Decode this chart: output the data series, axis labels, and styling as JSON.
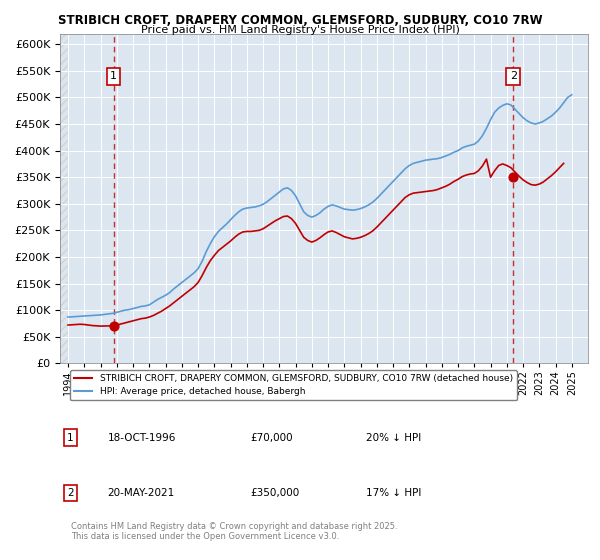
{
  "title1": "STRIBICH CROFT, DRAPERY COMMON, GLEMSFORD, SUDBURY, CO10 7RW",
  "title2": "Price paid vs. HM Land Registry's House Price Index (HPI)",
  "background_color": "#dce6f0",
  "plot_bg": "#dce6f0",
  "hpi_color": "#5b9bd5",
  "price_color": "#c00000",
  "marker_color": "#c00000",
  "annotation1": {
    "label": "1",
    "date_x": 1996.8,
    "y": 70000
  },
  "annotation2": {
    "label": "2",
    "date_x": 2021.4,
    "y": 350000
  },
  "legend_red": "STRIBICH CROFT, DRAPERY COMMON, GLEMSFORD, SUDBURY, CO10 7RW (detached house)",
  "legend_blue": "HPI: Average price, detached house, Babergh",
  "table": [
    {
      "num": "1",
      "date": "18-OCT-1996",
      "price": "£70,000",
      "hpi": "20% ↓ HPI"
    },
    {
      "num": "2",
      "date": "20-MAY-2021",
      "price": "£350,000",
      "hpi": "17% ↓ HPI"
    }
  ],
  "footnote": "Contains HM Land Registry data © Crown copyright and database right 2025.\nThis data is licensed under the Open Government Licence v3.0.",
  "ylim": [
    0,
    620000
  ],
  "yticks": [
    0,
    50000,
    100000,
    150000,
    200000,
    250000,
    300000,
    350000,
    400000,
    450000,
    500000,
    550000,
    600000
  ],
  "xlim_start": 1993.5,
  "xlim_end": 2026.0,
  "hpi_years": [
    1994,
    1994.25,
    1994.5,
    1994.75,
    1995,
    1995.25,
    1995.5,
    1995.75,
    1996,
    1996.25,
    1996.5,
    1996.75,
    1997,
    1997.25,
    1997.5,
    1997.75,
    1998,
    1998.25,
    1998.5,
    1998.75,
    1999,
    1999.25,
    1999.5,
    1999.75,
    2000,
    2000.25,
    2000.5,
    2000.75,
    2001,
    2001.25,
    2001.5,
    2001.75,
    2002,
    2002.25,
    2002.5,
    2002.75,
    2003,
    2003.25,
    2003.5,
    2003.75,
    2004,
    2004.25,
    2004.5,
    2004.75,
    2005,
    2005.25,
    2005.5,
    2005.75,
    2006,
    2006.25,
    2006.5,
    2006.75,
    2007,
    2007.25,
    2007.5,
    2007.75,
    2008,
    2008.25,
    2008.5,
    2008.75,
    2009,
    2009.25,
    2009.5,
    2009.75,
    2010,
    2010.25,
    2010.5,
    2010.75,
    2011,
    2011.25,
    2011.5,
    2011.75,
    2012,
    2012.25,
    2012.5,
    2012.75,
    2013,
    2013.25,
    2013.5,
    2013.75,
    2014,
    2014.25,
    2014.5,
    2014.75,
    2015,
    2015.25,
    2015.5,
    2015.75,
    2016,
    2016.25,
    2016.5,
    2016.75,
    2017,
    2017.25,
    2017.5,
    2017.75,
    2018,
    2018.25,
    2018.5,
    2018.75,
    2019,
    2019.25,
    2019.5,
    2019.75,
    2020,
    2020.25,
    2020.5,
    2020.75,
    2021,
    2021.25,
    2021.5,
    2021.75,
    2022,
    2022.25,
    2022.5,
    2022.75,
    2023,
    2023.25,
    2023.5,
    2023.75,
    2024,
    2024.25,
    2024.5,
    2024.75,
    2025
  ],
  "hpi_values": [
    87000,
    87500,
    88000,
    88500,
    89000,
    89500,
    90000,
    90500,
    91000,
    92000,
    93000,
    94000,
    96000,
    98000,
    100000,
    101000,
    103000,
    105000,
    107000,
    108000,
    110000,
    115000,
    120000,
    124000,
    128000,
    133000,
    140000,
    146000,
    152000,
    158000,
    164000,
    170000,
    178000,
    192000,
    210000,
    225000,
    238000,
    248000,
    255000,
    262000,
    270000,
    278000,
    285000,
    290000,
    292000,
    293000,
    294000,
    296000,
    299000,
    304000,
    310000,
    316000,
    322000,
    328000,
    330000,
    325000,
    315000,
    300000,
    285000,
    278000,
    275000,
    278000,
    283000,
    290000,
    295000,
    298000,
    296000,
    293000,
    290000,
    289000,
    288000,
    289000,
    291000,
    294000,
    298000,
    303000,
    310000,
    318000,
    326000,
    334000,
    342000,
    350000,
    358000,
    366000,
    372000,
    376000,
    378000,
    380000,
    382000,
    383000,
    384000,
    385000,
    387000,
    390000,
    393000,
    397000,
    400000,
    405000,
    408000,
    410000,
    412000,
    418000,
    428000,
    442000,
    458000,
    472000,
    480000,
    485000,
    488000,
    486000,
    478000,
    470000,
    462000,
    456000,
    452000,
    450000,
    452000,
    455000,
    460000,
    465000,
    472000,
    480000,
    490000,
    500000,
    505000
  ],
  "price_years": [
    1994.0,
    1994.25,
    1994.5,
    1994.75,
    1995,
    1995.25,
    1995.5,
    1995.75,
    1996,
    1996.25,
    1996.5,
    1996.75,
    1997,
    1997.25,
    1997.5,
    1997.75,
    1998,
    1998.25,
    1998.5,
    1998.75,
    1999,
    1999.25,
    1999.5,
    1999.75,
    2000,
    2000.25,
    2000.5,
    2000.75,
    2001,
    2001.25,
    2001.5,
    2001.75,
    2002,
    2002.25,
    2002.5,
    2002.75,
    2003,
    2003.25,
    2003.5,
    2003.75,
    2004,
    2004.25,
    2004.5,
    2004.75,
    2005,
    2005.25,
    2005.5,
    2005.75,
    2006,
    2006.25,
    2006.5,
    2006.75,
    2007,
    2007.25,
    2007.5,
    2007.75,
    2008,
    2008.25,
    2008.5,
    2008.75,
    2009,
    2009.25,
    2009.5,
    2009.75,
    2010,
    2010.25,
    2010.5,
    2010.75,
    2011,
    2011.25,
    2011.5,
    2011.75,
    2012,
    2012.25,
    2012.5,
    2012.75,
    2013,
    2013.25,
    2013.5,
    2013.75,
    2014,
    2014.25,
    2014.5,
    2014.75,
    2015,
    2015.25,
    2015.5,
    2015.75,
    2016,
    2016.25,
    2016.5,
    2016.75,
    2017,
    2017.25,
    2017.5,
    2017.75,
    2018,
    2018.25,
    2018.5,
    2018.75,
    2019,
    2019.25,
    2019.5,
    2019.75,
    2020,
    2020.25,
    2020.5,
    2020.75,
    2021,
    2021.25,
    2021.5,
    2021.75,
    2022,
    2022.25,
    2022.5,
    2022.75,
    2023,
    2023.25,
    2023.5,
    2023.75,
    2024,
    2024.25,
    2024.5
  ],
  "price_values": [
    72000,
    72500,
    73000,
    73500,
    73000,
    72000,
    71000,
    70500,
    70000,
    70200,
    70400,
    70000,
    72000,
    74000,
    76000,
    78000,
    80000,
    82000,
    84000,
    85000,
    87000,
    90000,
    94000,
    98000,
    103000,
    108000,
    114000,
    120000,
    126000,
    132000,
    138000,
    144000,
    152000,
    165000,
    180000,
    193000,
    203000,
    212000,
    218000,
    224000,
    230000,
    237000,
    243000,
    247000,
    248000,
    248000,
    249000,
    250000,
    253000,
    258000,
    263000,
    268000,
    272000,
    276000,
    277000,
    272000,
    263000,
    250000,
    237000,
    231000,
    228000,
    231000,
    236000,
    242000,
    247000,
    249000,
    246000,
    242000,
    238000,
    236000,
    234000,
    235000,
    237000,
    240000,
    244000,
    249000,
    256000,
    264000,
    272000,
    280000,
    288000,
    296000,
    304000,
    312000,
    317000,
    320000,
    321000,
    322000,
    323000,
    324000,
    325000,
    327000,
    330000,
    333000,
    337000,
    342000,
    346000,
    351000,
    354000,
    356000,
    357000,
    362000,
    371000,
    384000,
    350000,
    362000,
    372000,
    375000,
    372000,
    368000,
    360000,
    352000,
    345000,
    340000,
    336000,
    335000,
    337000,
    341000,
    347000,
    353000,
    360000,
    368000,
    376000
  ],
  "xticks": [
    1994,
    1995,
    1996,
    1997,
    1998,
    1999,
    2000,
    2001,
    2002,
    2003,
    2004,
    2005,
    2006,
    2007,
    2008,
    2009,
    2010,
    2011,
    2012,
    2013,
    2014,
    2015,
    2016,
    2017,
    2018,
    2019,
    2020,
    2021,
    2022,
    2023,
    2024,
    2025
  ]
}
